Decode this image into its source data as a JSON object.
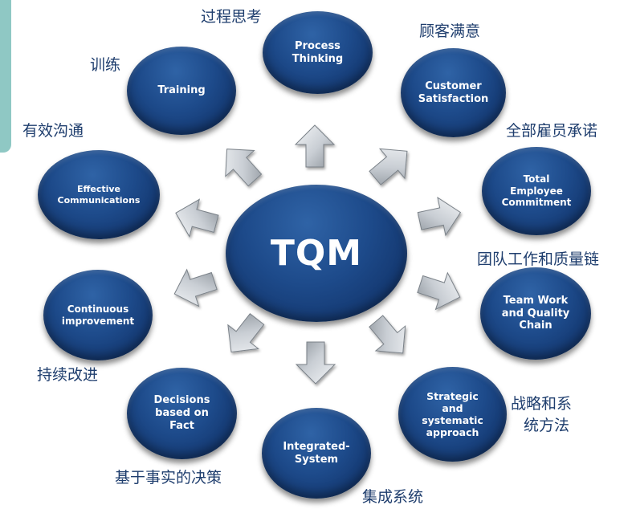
{
  "center": {
    "label": "TQM"
  },
  "nodes": [
    {
      "id": "process-thinking",
      "label": "Process Thinking",
      "cn": "过程思考"
    },
    {
      "id": "customer-satisfaction",
      "label": "Customer Satisfaction",
      "cn": "顾客满意"
    },
    {
      "id": "total-employee-commitment",
      "label": "Total Employee Commitment",
      "cn": "全部雇员承诺"
    },
    {
      "id": "team-work",
      "label": "Team Work and Quality Chain",
      "cn": "团队工作和质量链"
    },
    {
      "id": "strategic-approach",
      "label": "Strategic and systematic approach",
      "cn_line1": "战略和系",
      "cn_line2": "统方法"
    },
    {
      "id": "integrated-system",
      "label": "Integrated-System",
      "cn": "集成系统"
    },
    {
      "id": "decisions-fact",
      "label": "Decisions based on Fact",
      "cn": "基于事实的决策"
    },
    {
      "id": "continuous-improvement",
      "label": "Continuous improvement",
      "cn": "持续改进"
    },
    {
      "id": "effective-communications",
      "label": "Effective Communications",
      "cn": "有效沟通"
    },
    {
      "id": "training",
      "label": "Training",
      "cn": "训练"
    }
  ]
}
